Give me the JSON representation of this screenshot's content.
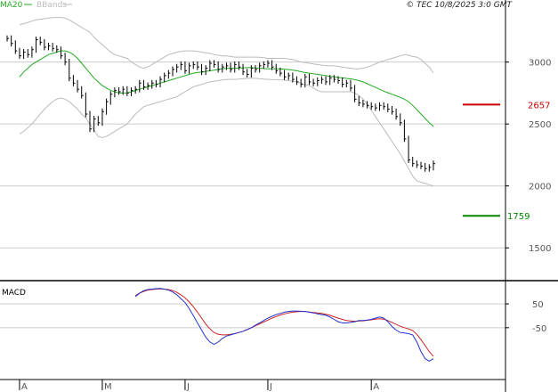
{
  "header": {
    "copyright": "© TEC 10/8/2025 3:0 GMT"
  },
  "legend": [
    {
      "label": "MA20",
      "color": "#22aa22"
    },
    {
      "label": "BBands",
      "color": "#bbbbbb"
    }
  ],
  "macd_label": "MACD",
  "colors": {
    "price": "#000000",
    "ma20": "#22aa22",
    "bbands": "#bbbbbb",
    "macd": "#2233cc",
    "signal": "#cc2222",
    "resistance": "#cc0000",
    "support": "#008800",
    "grid": "#cccccc",
    "axis": "#000000"
  },
  "chart_data": [
    {
      "type": "line",
      "name": "price",
      "legend_position": "top-left",
      "ylim": [
        1250,
        3400
      ],
      "yticks": [
        1500,
        2000,
        2500,
        3000
      ],
      "ytick_labels": [
        "1500",
        "2000",
        "2500",
        "3000"
      ],
      "xtick_labels": [
        "A",
        "M",
        "J",
        "J",
        "A"
      ],
      "xtick_index": [
        20,
        40,
        60,
        80,
        105
      ],
      "levels": [
        {
          "label": "2657",
          "value": 2657,
          "color": "#cc0000",
          "x_from": 110,
          "x_to": 119
        },
        {
          "label": "1759",
          "value": 1759,
          "color": "#008800",
          "x_from": 110,
          "x_to": 119
        }
      ],
      "close": [
        3190,
        3150,
        3090,
        3050,
        3080,
        3060,
        3100,
        3180,
        3160,
        3120,
        3130,
        3110,
        3100,
        3050,
        3000,
        2870,
        2830,
        2780,
        2730,
        2580,
        2460,
        2540,
        2510,
        2600,
        2680,
        2740,
        2770,
        2760,
        2780,
        2750,
        2770,
        2780,
        2830,
        2800,
        2810,
        2830,
        2820,
        2860,
        2890,
        2910,
        2940,
        2960,
        2980,
        2930,
        2970,
        2980,
        2960,
        2920,
        2950,
        2990,
        2980,
        2940,
        2960,
        2970,
        2940,
        2980,
        2960,
        2920,
        2900,
        2950,
        2940,
        2970,
        2980,
        2990,
        2960,
        2930,
        2910,
        2880,
        2890,
        2860,
        2840,
        2820,
        2880,
        2840,
        2830,
        2850,
        2860,
        2840,
        2870,
        2860,
        2850,
        2820,
        2830,
        2790,
        2700,
        2670,
        2660,
        2650,
        2640,
        2630,
        2650,
        2640,
        2620,
        2600,
        2560,
        2510,
        2380,
        2210,
        2180,
        2170,
        2160,
        2140,
        2150,
        2180
      ],
      "ma20": [
        2880,
        2920,
        2950,
        2980,
        3000,
        3020,
        3040,
        3060,
        3070,
        3080,
        3090,
        3090,
        3080,
        3060,
        3030,
        2990,
        2950,
        2910,
        2870,
        2840,
        2810,
        2790,
        2770,
        2760,
        2750,
        2750,
        2750,
        2760,
        2770,
        2780,
        2790,
        2800,
        2810,
        2820,
        2830,
        2840,
        2850,
        2860,
        2870,
        2880,
        2890,
        2900,
        2910,
        2915,
        2920,
        2925,
        2930,
        2935,
        2940,
        2945,
        2950,
        2950,
        2950,
        2952,
        2953,
        2955,
        2955,
        2952,
        2950,
        2948,
        2945,
        2945,
        2945,
        2944,
        2942,
        2940,
        2935,
        2930,
        2922,
        2915,
        2910,
        2905,
        2900,
        2895,
        2890,
        2885,
        2880,
        2876,
        2872,
        2868,
        2864,
        2858,
        2850,
        2840,
        2825,
        2810,
        2795,
        2780,
        2765,
        2752,
        2740,
        2728,
        2715,
        2700,
        2680,
        2650,
        2615,
        2580,
        2545,
        2510,
        2480
      ],
      "bb_upper": [
        3300,
        3310,
        3320,
        3330,
        3340,
        3345,
        3350,
        3355,
        3358,
        3360,
        3360,
        3355,
        3340,
        3320,
        3300,
        3280,
        3260,
        3240,
        3200,
        3170,
        3140,
        3110,
        3080,
        3060,
        3050,
        3040,
        3030,
        3000,
        2980,
        2960,
        2950,
        2960,
        2980,
        3000,
        3020,
        3040,
        3060,
        3070,
        3080,
        3085,
        3090,
        3090,
        3090,
        3085,
        3080,
        3075,
        3070,
        3060,
        3055,
        3050,
        3050,
        3045,
        3040,
        3040,
        3040,
        3040,
        3040,
        3040,
        3038,
        3035,
        3030,
        3030,
        3030,
        3030,
        3030,
        3025,
        3020,
        3010,
        3000,
        2995,
        2990,
        2985,
        2980,
        2975,
        2970,
        2970,
        2970,
        2965,
        2960,
        2955,
        2950,
        2945,
        2945,
        2950,
        2960,
        2970,
        2985,
        3000,
        3010,
        3020,
        3030,
        3040,
        3050,
        3060,
        3055,
        3045,
        3040,
        3020,
        2990,
        2960,
        2910
      ],
      "bb_lower": [
        2420,
        2440,
        2470,
        2500,
        2540,
        2580,
        2620,
        2650,
        2680,
        2700,
        2710,
        2700,
        2680,
        2650,
        2620,
        2580,
        2550,
        2500,
        2450,
        2400,
        2390,
        2400,
        2420,
        2440,
        2460,
        2480,
        2500,
        2540,
        2580,
        2610,
        2640,
        2650,
        2660,
        2670,
        2680,
        2690,
        2700,
        2710,
        2720,
        2740,
        2760,
        2780,
        2800,
        2810,
        2820,
        2830,
        2840,
        2845,
        2850,
        2855,
        2860,
        2860,
        2860,
        2862,
        2865,
        2868,
        2870,
        2868,
        2865,
        2862,
        2860,
        2858,
        2858,
        2856,
        2854,
        2850,
        2845,
        2840,
        2830,
        2820,
        2810,
        2790,
        2770,
        2760,
        2760,
        2760,
        2760,
        2760,
        2760,
        2760,
        2760,
        2750,
        2730,
        2700,
        2660,
        2610,
        2560,
        2510,
        2460,
        2410,
        2360,
        2310,
        2260,
        2200,
        2140,
        2080,
        2040,
        2030,
        2020,
        2010,
        2000
      ]
    },
    {
      "type": "line",
      "name": "MACD",
      "ylim": [
        -260,
        140
      ],
      "yticks": [
        50,
        -50
      ],
      "ytick_labels": [
        "50",
        "-50"
      ],
      "series": [
        {
          "name": "",
          "values": [
            80,
            95,
            105,
            110,
            112,
            114,
            115,
            112,
            108,
            100,
            88,
            72,
            55,
            30,
            0,
            -30,
            -60,
            -90,
            -110,
            -120,
            -110,
            -95,
            -85,
            -80,
            -75,
            -70,
            -65,
            -58,
            -50,
            -40,
            -30,
            -20,
            -10,
            -2,
            5,
            10,
            15,
            18,
            20,
            20,
            19,
            18,
            15,
            12,
            8,
            5,
            2,
            -5,
            -15,
            -25,
            -30,
            -30,
            -28,
            -25,
            -20,
            -20,
            -18,
            -15,
            -10,
            -5,
            -10,
            -25,
            -45,
            -60,
            -70,
            -72,
            -75,
            -80,
            -110,
            -150,
            -180,
            -190,
            -180
          ]
        },
        {
          "name": "",
          "values": [
            85,
            95,
            102,
            108,
            110,
            112,
            113,
            112,
            110,
            106,
            98,
            88,
            75,
            58,
            38,
            15,
            -10,
            -35,
            -55,
            -70,
            -78,
            -80,
            -80,
            -78,
            -75,
            -70,
            -65,
            -58,
            -50,
            -42,
            -34,
            -26,
            -18,
            -10,
            -3,
            3,
            8,
            12,
            15,
            17,
            18,
            18,
            16,
            14,
            12,
            10,
            6,
            2,
            -4,
            -10,
            -15,
            -20,
            -22,
            -23,
            -22,
            -21,
            -19,
            -17,
            -14,
            -12,
            -14,
            -20,
            -28,
            -36,
            -44,
            -50,
            -55,
            -62,
            -78,
            -100,
            -125,
            -150,
            -170
          ]
        }
      ]
    }
  ]
}
